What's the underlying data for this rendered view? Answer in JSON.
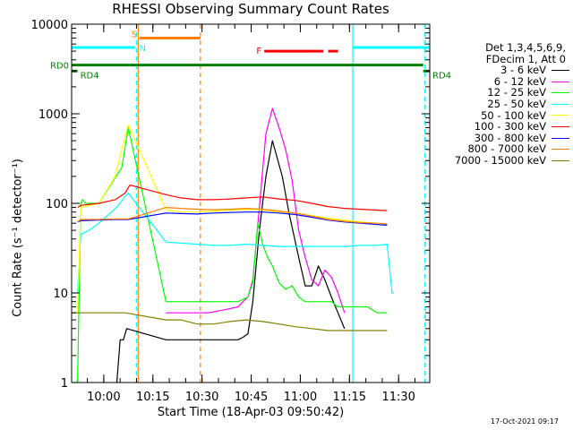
{
  "chart_data": {
    "type": "line",
    "title": "RHESSI Observing Summary Count Rates",
    "xlabel": "Start Time (18-Apr-03 09:50:42)",
    "ylabel": "Count Rate (s⁻¹ detector⁻¹)",
    "yscale": "log",
    "ylim": [
      1,
      10000
    ],
    "xlim": [
      -8.3,
      101
    ],
    "x_unit": "minutes after 09:58:30",
    "xticks": [
      {
        "value": 1.5,
        "label": "10:00"
      },
      {
        "value": 16.5,
        "label": "10:15"
      },
      {
        "value": 31.5,
        "label": "10:30"
      },
      {
        "value": 46.5,
        "label": "10:45"
      },
      {
        "value": 61.5,
        "label": "11:00"
      },
      {
        "value": 76.5,
        "label": "11:15"
      },
      {
        "value": 91.5,
        "label": "11:30"
      }
    ],
    "yticks": [
      {
        "value": 1,
        "label": "1"
      },
      {
        "value": 10,
        "label": "10"
      },
      {
        "value": 100,
        "label": "100"
      },
      {
        "value": 1000,
        "label": "1000"
      },
      {
        "value": 10000,
        "label": "10000"
      }
    ],
    "legend_header": [
      "Det 1,3,4,5,6,9,",
      "FDecim 1, Att 0"
    ],
    "series": [
      {
        "name": "3 - 6 keV",
        "color": "#000000",
        "x": [
          5.5,
          6.5,
          7.5,
          8.5,
          20.5,
          23.5,
          28.5,
          33.5,
          38.5,
          42.5,
          44,
          45.5,
          47,
          49,
          51,
          53,
          56,
          58,
          61,
          63,
          65,
          67,
          69,
          71,
          73,
          75
        ],
        "y": [
          1,
          3,
          3,
          4,
          3,
          3,
          3,
          3,
          3,
          3,
          3.2,
          3.5,
          8,
          50,
          200,
          500,
          200,
          80,
          25,
          12,
          12,
          20,
          14,
          9,
          6,
          4
        ]
      },
      {
        "name": "6 - 12 keV",
        "color": "#ff00ff",
        "x": [
          20.5,
          23.5,
          28.5,
          33.5,
          38.5,
          42.5,
          44,
          45.5,
          47,
          49,
          51,
          53,
          55,
          57,
          59,
          61,
          63,
          65,
          67,
          69,
          71,
          73,
          75
        ],
        "y": [
          6,
          6,
          6,
          6,
          6.5,
          7,
          8,
          9,
          14,
          90,
          600,
          1150,
          700,
          400,
          180,
          50,
          25,
          14,
          12,
          18,
          15,
          10,
          6
        ]
      },
      {
        "name": "12 - 25 keV",
        "color": "#00ff00",
        "x": [
          -8.3,
          -6.5,
          -5.5,
          -5,
          -4,
          0,
          4,
          7,
          9,
          20.5,
          23.5,
          28.5,
          33.5,
          38.5,
          42.5,
          45.5,
          47,
          48.5,
          50,
          51.5,
          53,
          55,
          57,
          59,
          61,
          63,
          65,
          67,
          69,
          71,
          73,
          75,
          78,
          82,
          85,
          88
        ],
        "y": [
          1,
          1,
          100,
          110,
          100,
          100,
          170,
          250,
          700,
          8,
          8,
          8,
          8,
          8,
          8,
          9,
          13,
          60,
          35,
          25,
          20,
          13,
          11,
          12,
          9,
          8,
          8,
          8,
          8,
          8,
          7,
          7,
          7,
          7,
          6,
          6
        ]
      },
      {
        "name": "25 - 50 keV",
        "color": "#00ffff",
        "x": [
          -8.3,
          -6.5,
          -5.5,
          -3,
          0,
          3,
          6,
          8,
          9,
          20.5,
          25,
          30,
          35,
          40,
          45,
          50,
          55,
          60,
          65,
          70,
          75,
          80,
          85,
          88,
          89.5,
          90
        ],
        "y": [
          10,
          10,
          45,
          50,
          60,
          75,
          95,
          120,
          130,
          37,
          36,
          35,
          34,
          34,
          35,
          34,
          33,
          33,
          33,
          33,
          33,
          34,
          34,
          35,
          10,
          10
        ]
      },
      {
        "name": "50 - 100 keV",
        "color": "#ffff00",
        "x": [
          -8.3,
          -6.5,
          -5.5,
          0,
          5,
          7,
          9,
          20.5,
          25,
          30,
          35,
          40,
          45,
          50,
          55,
          60,
          65,
          70,
          75,
          80,
          85,
          88
        ],
        "y": [
          6,
          6,
          90,
          100,
          200,
          400,
          750,
          85,
          80,
          80,
          82,
          84,
          86,
          85,
          80,
          78,
          73,
          68,
          65,
          62,
          60,
          58
        ]
      },
      {
        "name": "100 - 300 keV",
        "color": "#ff0000",
        "x": [
          -6.5,
          -5.5,
          0,
          5,
          8,
          9.5,
          20.5,
          25,
          30,
          35,
          40,
          45,
          50,
          55,
          60,
          65,
          70,
          75,
          80,
          85,
          88
        ],
        "y": [
          90,
          95,
          100,
          110,
          130,
          160,
          125,
          115,
          110,
          110,
          112,
          115,
          118,
          112,
          108,
          100,
          92,
          88,
          86,
          84,
          83
        ]
      },
      {
        "name": "300 - 800 keV",
        "color": "#0000ff",
        "x": [
          -6.5,
          -5.5,
          0,
          5,
          9,
          20.5,
          25,
          30,
          35,
          40,
          45,
          50,
          55,
          60,
          65,
          70,
          75,
          80,
          85,
          88
        ],
        "y": [
          62,
          64,
          65,
          66,
          66,
          78,
          77,
          76,
          78,
          79,
          80,
          80,
          78,
          75,
          70,
          65,
          62,
          60,
          58,
          57
        ]
      },
      {
        "name": "800 - 7000 keV",
        "color": "#ff8000",
        "x": [
          -6.5,
          -5.5,
          0,
          5,
          9,
          20.5,
          25,
          30,
          35,
          40,
          45,
          50,
          55,
          60,
          65,
          70,
          75,
          80,
          85,
          88
        ],
        "y": [
          62,
          66,
          66,
          67,
          67,
          90,
          88,
          86,
          85,
          86,
          88,
          86,
          82,
          78,
          72,
          66,
          63,
          61,
          60,
          59
        ]
      },
      {
        "name": "7000 - 15000 keV",
        "color": "#808000",
        "x": [
          -8.3,
          -6.5,
          -5.5,
          0,
          4,
          8,
          20.5,
          25,
          30,
          35,
          40,
          45,
          50,
          55,
          60,
          65,
          70,
          75,
          80,
          85,
          88
        ],
        "y": [
          6,
          6,
          6,
          6,
          6,
          6,
          5,
          5,
          4.5,
          4.5,
          4.8,
          5,
          4.8,
          4.5,
          4.2,
          4,
          3.8,
          3.8,
          3.8,
          3.8,
          3.8
        ]
      }
    ],
    "state_bars": [
      {
        "label": "RD0",
        "color": "#008000",
        "level": 3500,
        "x_start": -8.3,
        "x_end": 99
      },
      {
        "label": "RD4",
        "color": "#008000",
        "level": 3000,
        "x_start": -8.3,
        "x_end": -6.5
      },
      {
        "label": "RD4",
        "color": "#008000",
        "level": 3000,
        "x_start": 99,
        "x_end": 101
      },
      {
        "label": "",
        "color": "#00ffff",
        "level": 5500,
        "x_start": -8.3,
        "x_end": 11
      },
      {
        "label": "",
        "color": "#00ffff",
        "level": 5500,
        "x_start": 77.5,
        "x_end": 101
      },
      {
        "label": "S",
        "color": "#ff8000",
        "level": 7000,
        "x_start": 12.5,
        "x_end": 31
      },
      {
        "label": "F",
        "color": "#ff0000",
        "level": 5000,
        "x_start": 50.5,
        "x_end": 68.5
      },
      {
        "label": "",
        "color": "#ff0000",
        "level": 5000,
        "x_start": 70,
        "x_end": 73
      }
    ],
    "night_label": "N",
    "markers": [
      {
        "x": 11.5,
        "color": "#00ffff",
        "style": "dashed"
      },
      {
        "x": 12,
        "color": "#ff8000",
        "style": "solid"
      },
      {
        "x": 31,
        "color": "#ff8000",
        "style": "dashed"
      },
      {
        "x": 77.5,
        "color": "#00ffff",
        "style": "solid"
      },
      {
        "x": 99.5,
        "color": "#00ffff",
        "style": "dashed"
      }
    ],
    "grid": false,
    "legend_position": "right"
  },
  "footer_stamp": "17-Oct-2021 09:17"
}
